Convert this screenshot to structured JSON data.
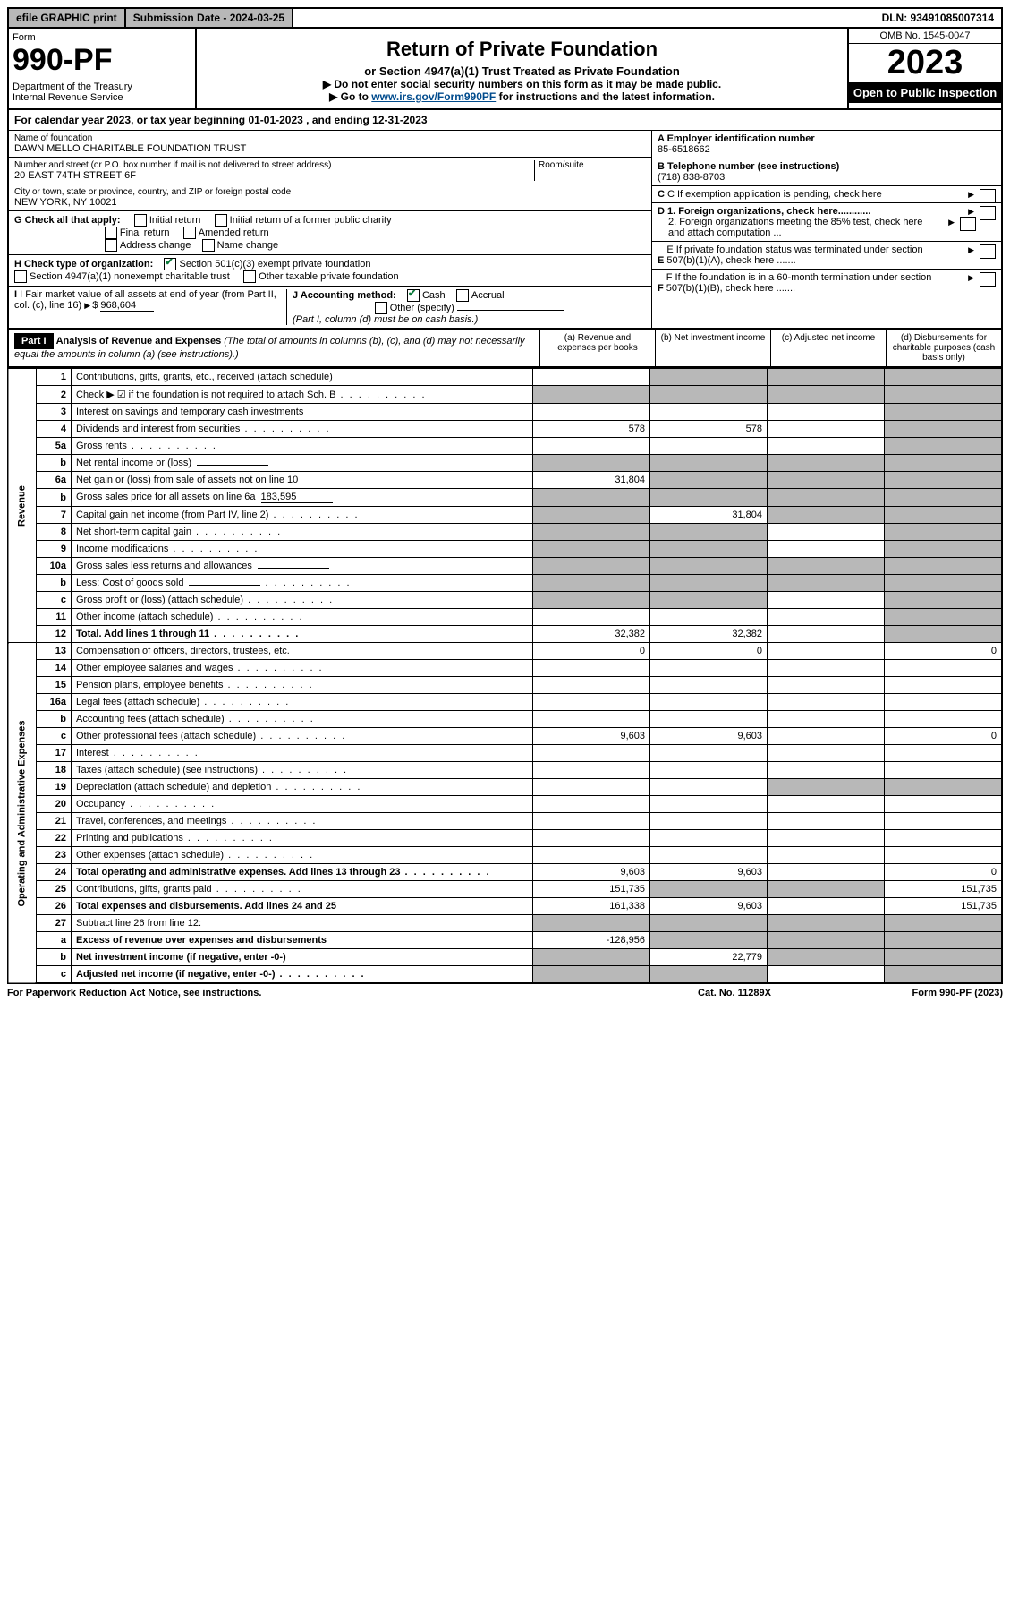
{
  "top": {
    "efile": "efile GRAPHIC print",
    "submission_label": "Submission Date - 2024-03-25",
    "dln": "DLN: 93491085007314"
  },
  "header": {
    "form_label": "Form",
    "form_number": "990-PF",
    "dept": "Department of the Treasury\nInternal Revenue Service",
    "title": "Return of Private Foundation",
    "subtitle": "or Section 4947(a)(1) Trust Treated as Private Foundation",
    "note1": "▶ Do not enter social security numbers on this form as it may be made public.",
    "note2_pre": "▶ Go to ",
    "note2_link": "www.irs.gov/Form990PF",
    "note2_post": " for instructions and the latest information.",
    "omb": "OMB No. 1545-0047",
    "year": "2023",
    "open": "Open to Public Inspection"
  },
  "calyear": "For calendar year 2023, or tax year beginning 01-01-2023              , and ending 12-31-2023",
  "entity": {
    "name_label": "Name of foundation",
    "name": "DAWN MELLO CHARITABLE FOUNDATION TRUST",
    "addr_label": "Number and street (or P.O. box number if mail is not delivered to street address)",
    "addr": "20 EAST 74TH STREET 6F",
    "room_label": "Room/suite",
    "city_label": "City or town, state or province, country, and ZIP or foreign postal code",
    "city": "NEW YORK, NY  10021",
    "ein_label": "A Employer identification number",
    "ein": "85-6518662",
    "phone_label": "B Telephone number (see instructions)",
    "phone": "(718) 838-8703",
    "c_label": "C If exemption application is pending, check here",
    "d1": "D 1. Foreign organizations, check here............",
    "d2": "2. Foreign organizations meeting the 85% test, check here and attach computation ...",
    "e_label": "E  If private foundation status was terminated under section 507(b)(1)(A), check here .......",
    "f_label": "F  If the foundation is in a 60-month termination under section 507(b)(1)(B), check here .......",
    "g_label": "G Check all that apply:",
    "g_initial": "Initial return",
    "g_initial_former": "Initial return of a former public charity",
    "g_final": "Final return",
    "g_amended": "Amended return",
    "g_address": "Address change",
    "g_name": "Name change",
    "h_label": "H Check type of organization:",
    "h_501c3": "Section 501(c)(3) exempt private foundation",
    "h_4947": "Section 4947(a)(1) nonexempt charitable trust",
    "h_other_tax": "Other taxable private foundation",
    "i_label": "I Fair market value of all assets at end of year (from Part II, col. (c), line 16)",
    "i_val": "968,604",
    "j_label": "J Accounting method:",
    "j_cash": "Cash",
    "j_accrual": "Accrual",
    "j_other": "Other (specify)",
    "j_note": "(Part I, column (d) must be on cash basis.)"
  },
  "part1": {
    "label": "Part I",
    "title": "Analysis of Revenue and Expenses",
    "title_note": "(The total of amounts in columns (b), (c), and (d) may not necessarily equal the amounts in column (a) (see instructions).)",
    "col_a": "(a)   Revenue and expenses per books",
    "col_b": "(b)   Net investment income",
    "col_c": "(c)   Adjusted net income",
    "col_d": "(d)   Disbursements for charitable purposes (cash basis only)"
  },
  "revenue_label": "Revenue",
  "opex_label": "Operating and Administrative Expenses",
  "rows": [
    {
      "n": "1",
      "t": "Contributions, gifts, grants, etc., received (attach schedule)",
      "a": "",
      "b": "–",
      "c": "–",
      "d": "–"
    },
    {
      "n": "2",
      "t": "Check ▶ ☑ if the foundation is not required to attach Sch. B",
      "dots": true,
      "a": "–",
      "b": "–",
      "c": "–",
      "d": "–"
    },
    {
      "n": "3",
      "t": "Interest on savings and temporary cash investments",
      "a": "",
      "b": "",
      "c": "",
      "d": "–"
    },
    {
      "n": "4",
      "t": "Dividends and interest from securities",
      "dots": true,
      "a": "578",
      "b": "578",
      "c": "",
      "d": "–"
    },
    {
      "n": "5a",
      "t": "Gross rents",
      "dots": true,
      "a": "",
      "b": "",
      "c": "",
      "d": "–"
    },
    {
      "n": "b",
      "t": "Net rental income or (loss)",
      "ul": true,
      "a": "–",
      "b": "–",
      "c": "–",
      "d": "–"
    },
    {
      "n": "6a",
      "t": "Net gain or (loss) from sale of assets not on line 10",
      "a": "31,804",
      "b": "–",
      "c": "–",
      "d": "–"
    },
    {
      "n": "b",
      "t": "Gross sales price for all assets on line 6a",
      "ul": true,
      "ulval": "183,595",
      "a": "–",
      "b": "–",
      "c": "–",
      "d": "–"
    },
    {
      "n": "7",
      "t": "Capital gain net income (from Part IV, line 2)",
      "dots": true,
      "a": "–",
      "b": "31,804",
      "c": "–",
      "d": "–"
    },
    {
      "n": "8",
      "t": "Net short-term capital gain",
      "dots": true,
      "a": "–",
      "b": "–",
      "c": "",
      "d": "–"
    },
    {
      "n": "9",
      "t": "Income modifications",
      "dots": true,
      "a": "–",
      "b": "–",
      "c": "",
      "d": "–"
    },
    {
      "n": "10a",
      "t": "Gross sales less returns and allowances",
      "ul": true,
      "a": "–",
      "b": "–",
      "c": "–",
      "d": "–"
    },
    {
      "n": "b",
      "t": "Less: Cost of goods sold",
      "dots": true,
      "ul": true,
      "a": "–",
      "b": "–",
      "c": "–",
      "d": "–"
    },
    {
      "n": "c",
      "t": "Gross profit or (loss) (attach schedule)",
      "dots": true,
      "a": "–",
      "b": "–",
      "c": "",
      "d": "–"
    },
    {
      "n": "11",
      "t": "Other income (attach schedule)",
      "dots": true,
      "a": "",
      "b": "",
      "c": "",
      "d": "–"
    },
    {
      "n": "12",
      "t": "Total. Add lines 1 through 11",
      "bold": true,
      "dots": true,
      "a": "32,382",
      "b": "32,382",
      "c": "",
      "d": "–"
    }
  ],
  "exp_rows": [
    {
      "n": "13",
      "t": "Compensation of officers, directors, trustees, etc.",
      "a": "0",
      "b": "0",
      "c": "",
      "d": "0"
    },
    {
      "n": "14",
      "t": "Other employee salaries and wages",
      "dots": true,
      "a": "",
      "b": "",
      "c": "",
      "d": ""
    },
    {
      "n": "15",
      "t": "Pension plans, employee benefits",
      "dots": true,
      "a": "",
      "b": "",
      "c": "",
      "d": ""
    },
    {
      "n": "16a",
      "t": "Legal fees (attach schedule)",
      "dots": true,
      "a": "",
      "b": "",
      "c": "",
      "d": ""
    },
    {
      "n": "b",
      "t": "Accounting fees (attach schedule)",
      "dots": true,
      "a": "",
      "b": "",
      "c": "",
      "d": ""
    },
    {
      "n": "c",
      "t": "Other professional fees (attach schedule)",
      "dots": true,
      "a": "9,603",
      "b": "9,603",
      "c": "",
      "d": "0"
    },
    {
      "n": "17",
      "t": "Interest",
      "dots": true,
      "a": "",
      "b": "",
      "c": "",
      "d": ""
    },
    {
      "n": "18",
      "t": "Taxes (attach schedule) (see instructions)",
      "dots": true,
      "a": "",
      "b": "",
      "c": "",
      "d": ""
    },
    {
      "n": "19",
      "t": "Depreciation (attach schedule) and depletion",
      "dots": true,
      "a": "",
      "b": "",
      "c": "–",
      "d": "–"
    },
    {
      "n": "20",
      "t": "Occupancy",
      "dots": true,
      "a": "",
      "b": "",
      "c": "",
      "d": ""
    },
    {
      "n": "21",
      "t": "Travel, conferences, and meetings",
      "dots": true,
      "a": "",
      "b": "",
      "c": "",
      "d": ""
    },
    {
      "n": "22",
      "t": "Printing and publications",
      "dots": true,
      "a": "",
      "b": "",
      "c": "",
      "d": ""
    },
    {
      "n": "23",
      "t": "Other expenses (attach schedule)",
      "dots": true,
      "a": "",
      "b": "",
      "c": "",
      "d": ""
    },
    {
      "n": "24",
      "t": "Total operating and administrative expenses. Add lines 13 through 23",
      "bold": true,
      "dots": true,
      "a": "9,603",
      "b": "9,603",
      "c": "",
      "d": "0"
    },
    {
      "n": "25",
      "t": "Contributions, gifts, grants paid",
      "dots": true,
      "a": "151,735",
      "b": "–",
      "c": "–",
      "d": "151,735"
    },
    {
      "n": "26",
      "t": "Total expenses and disbursements. Add lines 24 and 25",
      "bold": true,
      "a": "161,338",
      "b": "9,603",
      "c": "",
      "d": "151,735"
    },
    {
      "n": "27",
      "t": "Subtract line 26 from line 12:",
      "a": "–",
      "b": "–",
      "c": "–",
      "d": "–"
    },
    {
      "n": "a",
      "t": "Excess of revenue over expenses and disbursements",
      "bold": true,
      "a": "-128,956",
      "b": "–",
      "c": "–",
      "d": "–"
    },
    {
      "n": "b",
      "t": "Net investment income (if negative, enter -0-)",
      "bold": true,
      "a": "–",
      "b": "22,779",
      "c": "–",
      "d": "–"
    },
    {
      "n": "c",
      "t": "Adjusted net income (if negative, enter -0-)",
      "bold": true,
      "dots": true,
      "a": "–",
      "b": "–",
      "c": "",
      "d": "–"
    }
  ],
  "footer": {
    "left": "For Paperwork Reduction Act Notice, see instructions.",
    "mid": "Cat. No. 11289X",
    "right": "Form 990-PF (2023)"
  },
  "colors": {
    "shaded": "#b8b8b8",
    "check_green": "#0a7a3a",
    "link_blue": "#004b8d"
  }
}
